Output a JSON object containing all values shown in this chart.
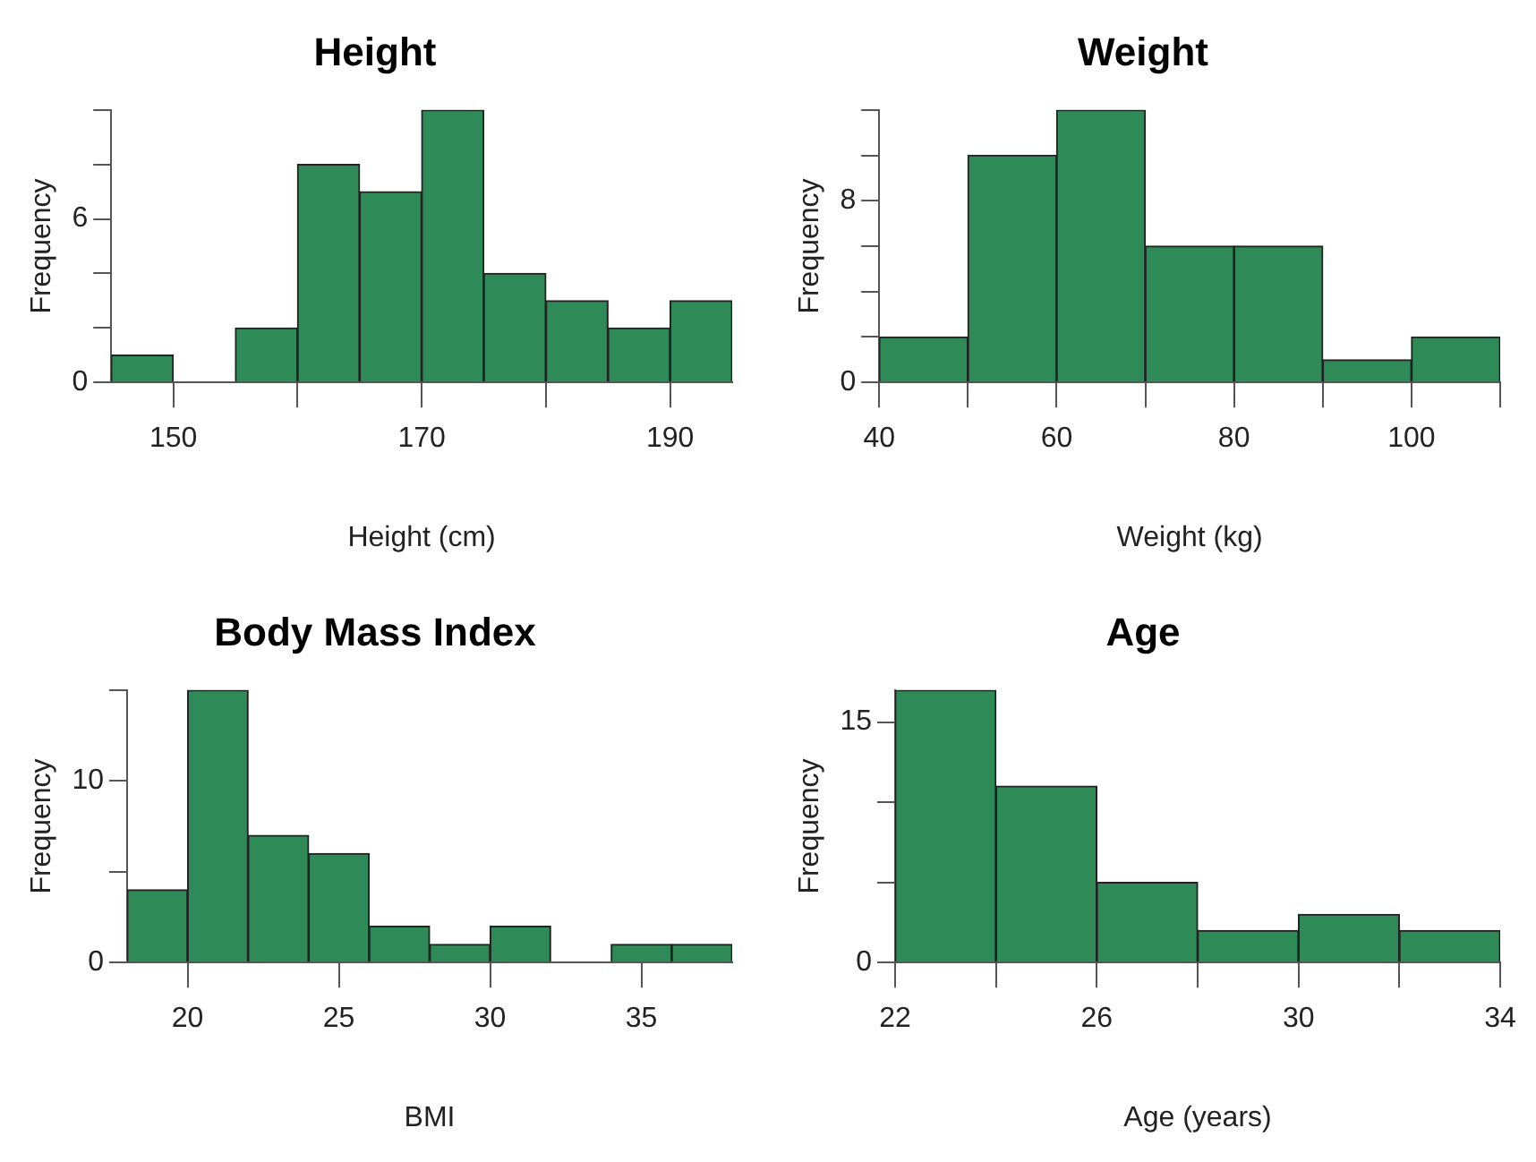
{
  "chart_data": [
    {
      "type": "histogram",
      "title": "Height",
      "xlabel": "Height (cm)",
      "ylabel": "Frequency",
      "color": "#2e8b57",
      "bins": [
        145,
        150,
        155,
        160,
        165,
        170,
        175,
        180,
        185,
        190,
        195
      ],
      "values": [
        1,
        0,
        2,
        8,
        7,
        10,
        4,
        3,
        2,
        3
      ],
      "xlim": [
        145,
        195
      ],
      "xticks": [
        150,
        {
          "value": 160,
          "label": null
        },
        170,
        {
          "value": 180,
          "label": null
        },
        190
      ],
      "ylim": [
        0,
        10
      ],
      "yticks": [
        0,
        {
          "value": 2,
          "label": null
        },
        {
          "value": 4,
          "label": null
        },
        6,
        {
          "value": 8,
          "label": null
        },
        {
          "value": 10,
          "label": null
        }
      ]
    },
    {
      "type": "histogram",
      "title": "Weight",
      "xlabel": "Weight (kg)",
      "ylabel": "Frequency",
      "color": "#2e8b57",
      "bins": [
        40,
        50,
        60,
        70,
        80,
        90,
        100,
        110
      ],
      "values": [
        2,
        10,
        12,
        6,
        6,
        1,
        2
      ],
      "xlim": [
        40,
        110
      ],
      "xticks": [
        40,
        {
          "value": 50,
          "label": null
        },
        60,
        {
          "value": 70,
          "label": null
        },
        80,
        {
          "value": 90,
          "label": null
        },
        100,
        {
          "value": 110,
          "label": null
        }
      ],
      "ylim": [
        0,
        12
      ],
      "yticks": [
        0,
        {
          "value": 2,
          "label": null
        },
        {
          "value": 4,
          "label": null
        },
        {
          "value": 6,
          "label": null
        },
        8,
        {
          "value": 10,
          "label": null
        },
        {
          "value": 12,
          "label": null
        }
      ]
    },
    {
      "type": "histogram",
      "title": "Body Mass Index",
      "xlabel": "BMI",
      "ylabel": "Frequency",
      "color": "#2e8b57",
      "bins": [
        18,
        20,
        22,
        24,
        26,
        28,
        30,
        32,
        34,
        36,
        38
      ],
      "values": [
        4,
        15,
        7,
        6,
        2,
        1,
        2,
        0,
        1,
        1
      ],
      "xlim": [
        18,
        38
      ],
      "xticks": [
        20,
        25,
        30,
        35
      ],
      "ylim": [
        0,
        15
      ],
      "yticks": [
        0,
        {
          "value": 5,
          "label": null
        },
        10,
        {
          "value": 15,
          "label": null
        }
      ]
    },
    {
      "type": "histogram",
      "title": "Age",
      "xlabel": "Age (years)",
      "ylabel": "Frequency",
      "color": "#2e8b57",
      "bins": [
        22,
        24,
        26,
        28,
        30,
        32,
        34
      ],
      "values": [
        17,
        11,
        5,
        2,
        3,
        2
      ],
      "xlim": [
        22,
        34
      ],
      "xticks": [
        22,
        {
          "value": 24,
          "label": null
        },
        26,
        {
          "value": 28,
          "label": null
        },
        30,
        {
          "value": 32,
          "label": null
        },
        34
      ],
      "ylim": [
        0,
        17
      ],
      "yticks": [
        0,
        {
          "value": 5,
          "label": null
        },
        {
          "value": 10,
          "label": null
        },
        15
      ]
    }
  ]
}
